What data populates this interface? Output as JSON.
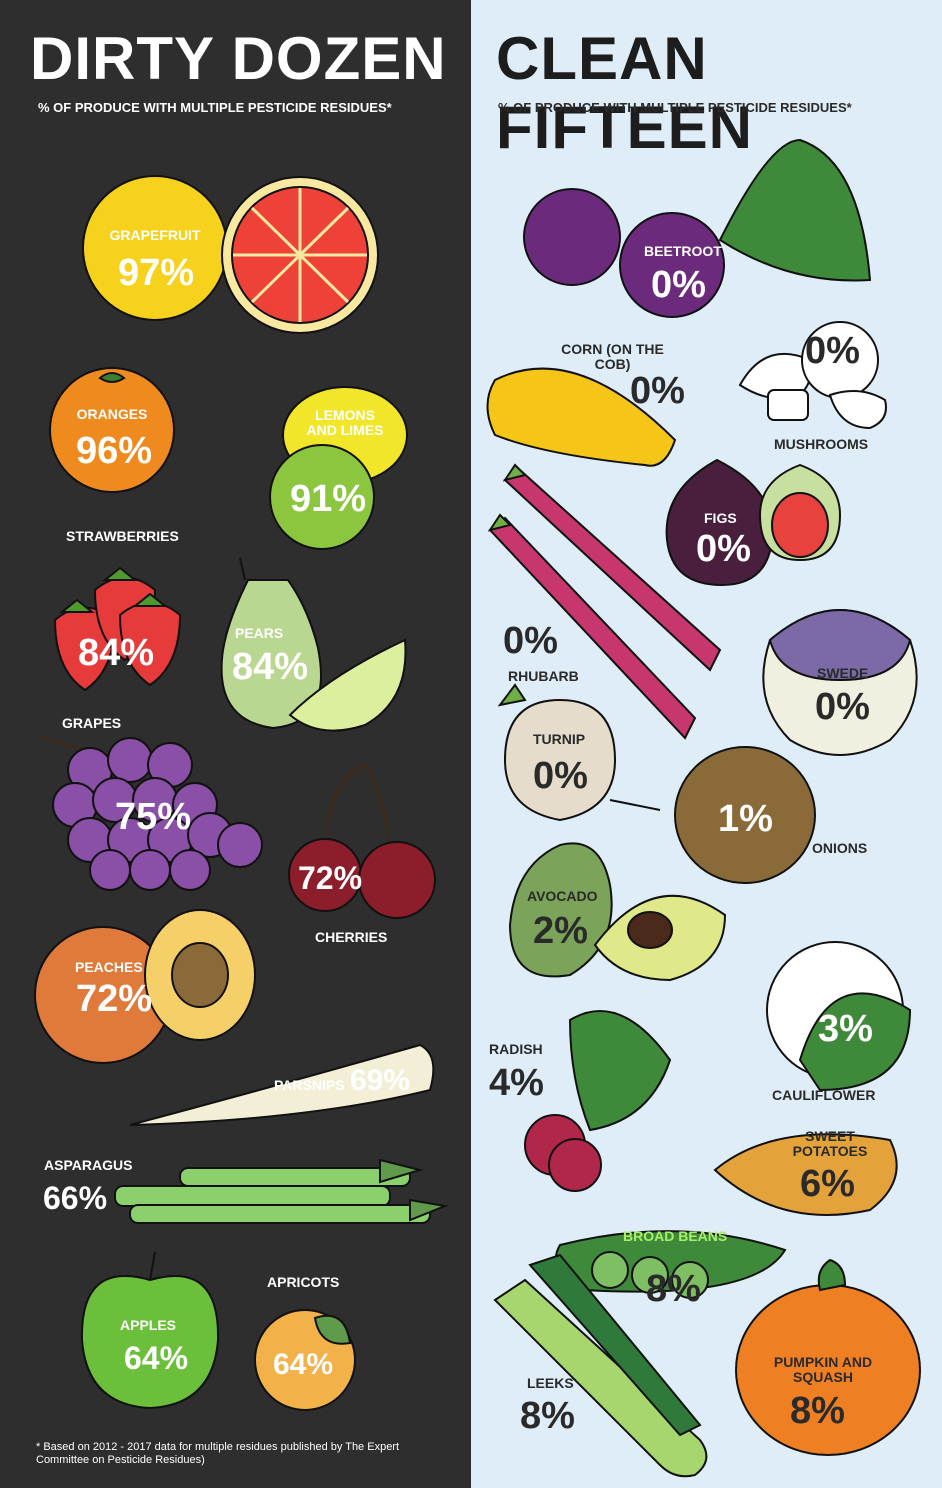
{
  "dirty": {
    "title": "DIRTY DOZEN",
    "subtitle": "% OF PRODUCE WITH MULTIPLE PESTICIDE RESIDUES*",
    "items": [
      {
        "label": "GRAPEFRUIT",
        "pct": "97%"
      },
      {
        "label": "ORANGES",
        "pct": "96%"
      },
      {
        "label": "LEMONS AND LIMES",
        "pct": "91%"
      },
      {
        "label": "STRAWBERRIES",
        "pct": "84%"
      },
      {
        "label": "PEARS",
        "pct": "84%"
      },
      {
        "label": "GRAPES",
        "pct": "75%"
      },
      {
        "label": "CHERRIES",
        "pct": "72%"
      },
      {
        "label": "PEACHES",
        "pct": "72%"
      },
      {
        "label": "PARSNIPS",
        "pct": "69%"
      },
      {
        "label": "ASPARAGUS",
        "pct": "66%"
      },
      {
        "label": "APPLES",
        "pct": "64%"
      },
      {
        "label": "APRICOTS",
        "pct": "64%"
      }
    ],
    "footnote": "* Based on 2012 - 2017 data for multiple residues published by The Expert Committee on Pesticide Residues)"
  },
  "clean": {
    "title": "CLEAN FIFTEEN",
    "subtitle": "% OF PRODUCE WITH MULTIPLE PESTICIDE RESIDUES*",
    "items": [
      {
        "label": "BEETROOT",
        "pct": "0%"
      },
      {
        "label": "CORN (ON THE COB)",
        "pct": "0%"
      },
      {
        "label": "MUSHROOMS",
        "pct": "0%"
      },
      {
        "label": "FIGS",
        "pct": "0%"
      },
      {
        "label": "RHUBARB",
        "pct": "0%"
      },
      {
        "label": "SWEDE",
        "pct": "0%"
      },
      {
        "label": "TURNIP",
        "pct": "0%"
      },
      {
        "label": "ONIONS",
        "pct": "1%"
      },
      {
        "label": "AVOCADO",
        "pct": "2%"
      },
      {
        "label": "CAULIFLOWER",
        "pct": "3%"
      },
      {
        "label": "RADISH",
        "pct": "4%"
      },
      {
        "label": "SWEET POTATOES",
        "pct": "6%"
      },
      {
        "label": "BROAD BEANS",
        "pct": "8%"
      },
      {
        "label": "LEEKS",
        "pct": "8%"
      },
      {
        "label": "PUMPKIN AND SQUASH",
        "pct": "8%"
      }
    ]
  },
  "colors": {
    "left_bg": "#2e2e2e",
    "right_bg": "#deedf7"
  }
}
